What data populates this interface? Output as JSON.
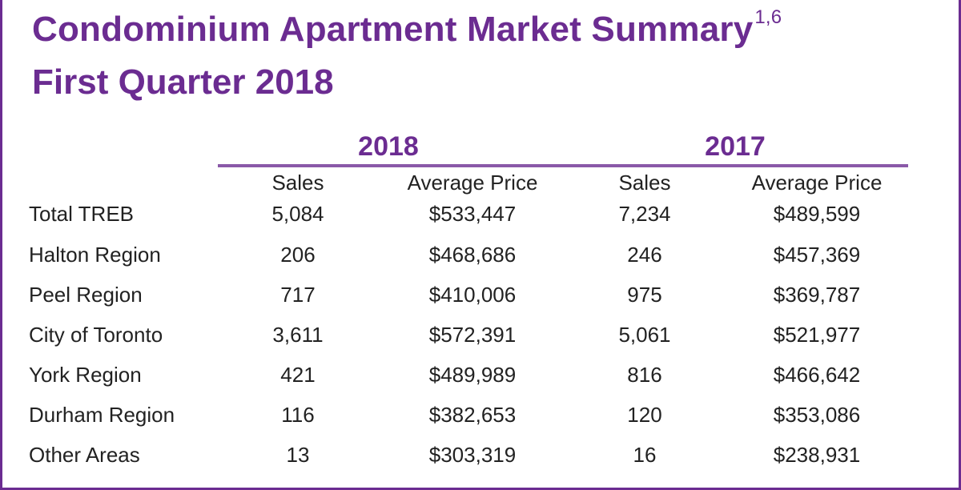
{
  "title": "Condominium Apartment Market Summary",
  "title_superscript": "1,6",
  "subtitle": "First Quarter 2018",
  "years": [
    "2018",
    "2017"
  ],
  "column_headers": {
    "sales_2018": "Sales",
    "avg_price_2018": "Average Price",
    "sales_2017": "Sales",
    "avg_price_2017": "Average Price"
  },
  "rows": [
    {
      "region": "Total TREB",
      "sales_2018": "5,084",
      "avg_2018": "$533,447",
      "sales_2017": "7,234",
      "avg_2017": "$489,599"
    },
    {
      "region": "Halton Region",
      "sales_2018": "206",
      "avg_2018": "$468,686",
      "sales_2017": "246",
      "avg_2017": "$457,369"
    },
    {
      "region": "Peel Region",
      "sales_2018": "717",
      "avg_2018": "$410,006",
      "sales_2017": "975",
      "avg_2017": "$369,787"
    },
    {
      "region": "City of Toronto",
      "sales_2018": "3,611",
      "avg_2018": "$572,391",
      "sales_2017": "5,061",
      "avg_2017": "$521,977"
    },
    {
      "region": "York Region",
      "sales_2018": "421",
      "avg_2018": "$489,989",
      "sales_2017": "816",
      "avg_2017": "$466,642"
    },
    {
      "region": "Durham Region",
      "sales_2018": "116",
      "avg_2018": "$382,653",
      "sales_2017": "120",
      "avg_2017": "$353,086"
    },
    {
      "region": "Other Areas",
      "sales_2018": "13",
      "avg_2018": "$303,319",
      "sales_2017": "16",
      "avg_2017": "$238,931"
    }
  ],
  "colors": {
    "accent": "#6b2c91",
    "rule": "#8a59a8",
    "text": "#222222"
  }
}
